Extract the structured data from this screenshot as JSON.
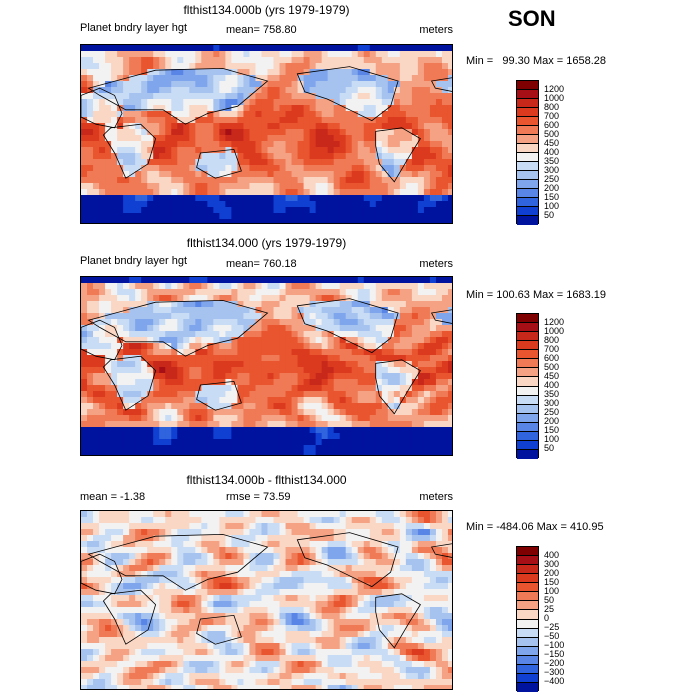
{
  "season": "SON",
  "panels": [
    {
      "title": "flthist134.000b (yrs 1979-1979)",
      "left_label": "Planet bndry layer hgt",
      "mid_label": "mean=  758.80",
      "units": "meters",
      "minmax": "Min =   99.30 Max = 1658.28",
      "cbar_labels": [
        "1200",
        "1000",
        "800",
        "700",
        "600",
        "500",
        "450",
        "400",
        "350",
        "300",
        "250",
        "200",
        "150",
        "100",
        "50"
      ],
      "field_type": "pblh"
    },
    {
      "title": "flthist134.000 (yrs 1979-1979)",
      "left_label": "Planet bndry layer hgt",
      "mid_label": "mean=  760.18",
      "units": "meters",
      "minmax": "Min = 100.63 Max = 1683.19",
      "cbar_labels": [
        "1200",
        "1000",
        "800",
        "700",
        "600",
        "500",
        "450",
        "400",
        "350",
        "300",
        "250",
        "200",
        "150",
        "100",
        "50"
      ],
      "field_type": "pblh"
    },
    {
      "title": "flthist134.000b - flthist134.000",
      "left_label": "mean =   -1.38",
      "mid_label": "rmse =   73.59",
      "units": "meters",
      "minmax": "Min = -484.06 Max = 410.95",
      "cbar_labels": [
        "400",
        "300",
        "200",
        "150",
        "100",
        "50",
        "25",
        "0",
        "−25",
        "−50",
        "−100",
        "−150",
        "−200",
        "−300",
        "−400"
      ],
      "field_type": "diff"
    }
  ],
  "colors": {
    "scale": [
      "#7f0000",
      "#a50f15",
      "#c8281a",
      "#dc3a1e",
      "#e8552e",
      "#ef7a55",
      "#f4a283",
      "#fad6c4",
      "#f2f2f2",
      "#c9dcf5",
      "#a6c3f0",
      "#7fa6ec",
      "#5985e6",
      "#3063de",
      "#1040d2",
      "#00139e"
    ]
  }
}
